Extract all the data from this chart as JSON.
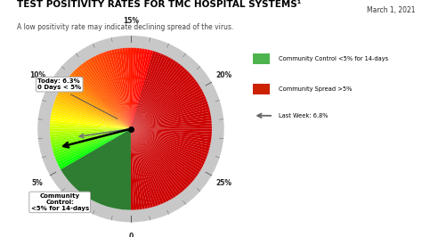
{
  "title": "TEST POSITIVITY RATES FOR TMC HOSPITAL SYSTEMS¹",
  "subtitle": "A low positivity rate may indicate declining spread of the virus.",
  "date": "March 1, 2021",
  "today_value": 6.3,
  "last_week_value": 6.8,
  "days_below_5": 0,
  "gauge_max": 30,
  "tick_labels": [
    "0",
    "5%",
    "10%",
    "15%",
    "20%",
    "25%"
  ],
  "tick_values": [
    0,
    5,
    10,
    15,
    20,
    25
  ],
  "legend_items": [
    {
      "label": "Community Control <5% for 14-days",
      "color": "#4db34d"
    },
    {
      "label": "Community Spread >5%",
      "color": "#cc2200"
    }
  ],
  "last_week_label": "Last Week: 6.8%",
  "today_label": "Today: 6.3%\n0 Days < 5%",
  "community_label": "Community\nControl:\n<5% for 14-days",
  "bg_color": "#FFFFFF",
  "gauge_bg_color": "#C8C8C8"
}
